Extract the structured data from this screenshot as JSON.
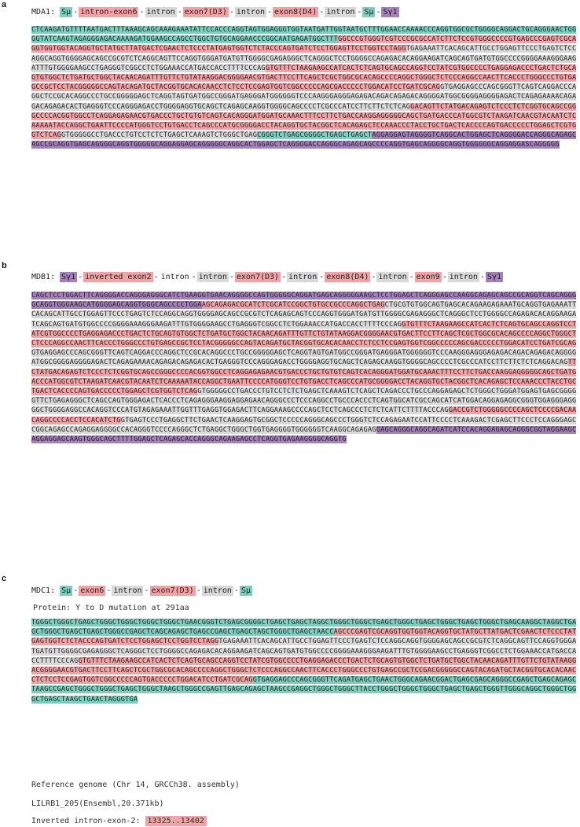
{
  "colors": {
    "teal": "#7ecfbf",
    "pink": "#f2a3a6",
    "grey": "#d9d9d9",
    "purple": "#a680bb"
  },
  "panels": [
    {
      "letter": "a",
      "name": "MDA1:",
      "construct": [
        {
          "text": "Sμ",
          "color": "teal"
        },
        {
          "text": "intron-exon6",
          "color": "pink"
        },
        {
          "text": "intron",
          "color": "grey"
        },
        {
          "text": "exon7(D3)",
          "color": "pink"
        },
        {
          "text": "intron",
          "color": "grey"
        },
        {
          "text": "exon8(D4)",
          "color": "pink"
        },
        {
          "text": "intron",
          "color": "grey"
        },
        {
          "text": "Sμ",
          "color": "teal"
        },
        {
          "text": "Sγ1",
          "color": "purple"
        }
      ],
      "sequence": [
        {
          "text": "CTCAAGATGTTTTAATGACTTTAAAGCAGCAAAGAAATATTCCACCCAGGTAGTGGAGGGTGGTAATGATTGGTAATGCTTTGGAACCAAAACCCAGGTGGCGCTGGGGCAGGACTGCAGGGAACTGGGGTATCAAGTAGAGGGAGACAAAAGATGGAAGCCAGCCTGGCTGTGCAGGAACCCGGCAATGAGATGGCTTT",
          "color": "teal"
        },
        {
          "text": "GGCCCGTGGGTCGTCCCGCGCCATCTTCTCCGTGGGCCCCGTGAGCCCGAGTCGCAGGTGGTGGTACAGGTGCTATGCTTATGACTCGAACTCTCCCTATGAGTGGTCTCTACCCAGTGATCTCCTGGAGTTCCTGGTCCTAGG",
          "color": "pink"
        },
        {
          "text": "TGAGAAATTCACAGCATTGCCTGGAGTTCCCTGAGTCTCCAGGCAGGTGGGGAGCAGCCGCGTCTCAGGCAGTTCCAGGTGGGATGATGTTGGGGCGAGAGGGCTCAGGGCTCCTGGGGCCAGAGACACAGGAAGATCAGCAGTGATGTGGCCCCGGGGAAAGGGAAGATTTGTGGGGAAGCCTGAGGGTCGGCCTCTGGAAACCATGACCACCTTTTCCCAG",
          "color": "grey"
        },
        {
          "text": "GTGTTTCTAAGAAGCCATCACTCTCAGTGCAGCCAGGTCCTATCGTGGCCCCTGAGGAGACCCTGACTCTGCAGTGTGGCTCTGATGCTGGCTACAACAGATTTGTTCTGTATAAGGACGGGGAACGTGACTTCCTTCAGCTCGCTGGCGCACAGCCCCAGGCTGGGCTCTCCCAGGCCAACTTCACCCTGGGCCCTGTGAGCCGCTCCTACGGGGGCCAGTACAGATGCTACGGTGCACACAACCTCTCCTCCGAGTGGTCGGCCCCCAGCGACCCCCTGGACATCCTGATCGCAG",
          "color": "pink"
        },
        {
          "text": "GTGAGGAGCCCAGCGGGTTCAGTCAGGACCCAGGCTCCGCACAGGCCCTGCCGGGGGAGCTCAGGTAGTGATGGCCGGGATGAGGGATGGGGGGTCCCAAGGGAGGGAGAGACAGACAGAGACAGGGGATGGCGGGGAGGGGAGACTCAGAGAAAACAGAGACAGAGACACTGAGGGTCCCAGGGAGACCTGGGGAGGTGCAGCTCAGAGCAAGGTGGGGCAGCCCCTCGCCCATCCTTCTTCTCTCAG",
          "color": "grey"
        },
        {
          "text": "GACAGTTCTATGACAGAGTCTCCCTCTCGGTGCAGCCGGGCCCCACGGTGGCCTCAGGAGAGAACGTGACCCTGCTGTGTCAGTCACAGGGATGGATGCAAACTTTCCTTCTGACCAAGGAGGGGGCAGCTGATGACCCATGGCGTCTAAGATCAACGTACAATCTCAAAAATACCAGGCTGAATTCCCCATGGGTCCTGTGACCTCAGCCCATGCGGGGACCTACAGGTGCTACGGCTCACAGAGCTCCAAACCCTACCTGCTGACTCACCCCAGTGACCCCCTGGAGCTCGTGGTCTCAG",
          "color": "pink"
        },
        {
          "text": "GTGGGGGCCTGACCCTGTCCTCTCTGAGCTCAAAGTCTGGGCTGAG",
          "color": "grey"
        },
        {
          "text": "CGGGTCTGAGCGGGGCTGAGCTGAGCT",
          "color": "teal"
        },
        {
          "text": "AGGAGGAGTAGGGGTCAGGCACTGGAGCTCAGGGGACCAGGGCAGAGCAGCCGCAGGTGAGCAGGGGCAGGTGGGGGCAGGAGGAGCAGGGGGCAGGCACTGGAGCTCAGGGGACCAGGGCAGAGCAGCCCCAGGTGAGCAGGGGCAGGTGGGGGGCAGGAGGASCAGGGGG",
          "color": "purple"
        }
      ]
    },
    {
      "letter": "b",
      "name": "MDB1:",
      "construct": [
        {
          "text": "Sγ1",
          "color": "purple"
        },
        {
          "text": "inverted exon2",
          "color": "pink"
        },
        {
          "text": "intron",
          "color": "none"
        },
        {
          "text": "intron",
          "color": "grey"
        },
        {
          "text": "exon7(D3)",
          "color": "pink"
        },
        {
          "text": "intron",
          "color": "grey"
        },
        {
          "text": "exon8(D4)",
          "color": "pink"
        },
        {
          "text": "intron",
          "color": "grey"
        },
        {
          "text": "exon9",
          "color": "pink"
        },
        {
          "text": "intron",
          "color": "grey"
        },
        {
          "text": "Sγ1",
          "color": "purple"
        }
      ],
      "sequence": [
        {
          "text": "CAGCTCCTGGACTTCAGGGGACCAGGGAGGGCATCTGAAGGTGAACAGGGGCCAGTGGGGGCAGGATGAGCAGGGGGAAGCTCCTGGAGCTCAGGGAGCCAAGGCAGAGCAGCCGCAGGTCAGCAGGGGCAGGTGGGAAGCATGGGGAGCAGGTGGGCAGCCCCTGGA",
          "color": "purple"
        },
        {
          "text": "AGCAGAGACGCATCTCGCATCCGGCTGTGCCGCCCAGGCTGAG",
          "color": "pink"
        },
        {
          "text": "CTGCGTGTGGCAGTGAGCACAGAAGAGAAATGCAGGTGAGAAATTCACAGCATTGCCTGGAGTTCCCTGAGTCTCCAGGCAGGTGGGGAGCAGCCGCGTCTCAGAGCAGTCCCAGGTGGGATGATGTTGGGGCGAGAGGGCTCAGGGCTCCTGGGGCCAGAGACACAGGAAGATCAGCAGTGATGTGGCCCCGGGGAAAGGGAAGATTTGTGGGGAAGCCTGAGGGTCGGCCTCTGGAAACCATGACCACCTTTTCCCAG",
          "color": "grey"
        },
        {
          "text": "GTGTTTCTAAGAAGCCATCACTCTCAGTGCAGCCAGGTCCTATCGTGGCCCCTGAGGAGACCCTGACTCTGCAGTGTGGCTCTGATGCTGGCTACAACAGATTTGTTCTGTATAAGGACGGGGAACGTGACTTCCTTCAGCTCGCTGGCGCACAGCCCCAGGCTGGGCTCTCCCAGGCCAACTTCACCCTGGGCCCTGTGAGCCGCTCCTACGGGGGCCAGTACAGATGCTACGGTGCACACAACCTCTCCTCCGAGTGGTCGGCCCCCAGCGACCCCCTGGACATCCTGATCGCAG",
          "color": "pink"
        },
        {
          "text": "GTGAGGAGCCCAGCGGGTTCAGTCAGGACCCAGGCTCCGCACAGGCCCTGCCGGGGGAGCTCAGGTAGTGATGGCCGGGATGAGGGATGGGGGGTCCCAAGGGAGGGAGAGACAGACAGAGACAGGGGATGGCGGGGAGGGGAGACTCAGAGAAAACAGAGACAGAGACACTGAGGGTCCCAGGGAGACCTGGGGAGGTGCAGCTCAGAGCAAGGTGGGGCAGCCCCTCGCCCATCCTTCTTCTCTCAGGACAG",
          "color": "grey"
        },
        {
          "text": "TTCTATGACAGAGTCTCCCTCTCGGTGCAGCCGGGCCCCACGGTGGCCTCAGGAGAGAACGTGACCCTGCTGTGTCAGTCACAGGGATGGATGCAAACTTTCCTTCTGACCAAGGAGGGGGCAGCTGATGACCCATGGCGTCTAAGATCAACGTACAATCTCAAAAATACCAGGCTGAATTCCCCATGGGTCCTGTGACCTCAGCCCATGCGGGGACCTACAGGTGCTACGGCTCACAGAGCTCCAAACCCTACCTGCTGACTCACCCCAGTGACCCCCTGGAGCTCGTGGTCTCAG",
          "color": "pink"
        },
        {
          "text": "GTGGGGGCCTGACCCTGTCCTCTCTGAGCTCAAAGTCTCAGCTCAGACCCTGCCCAGGAGAGCTCTGGGCTGGGATGGAGTGAGCGGGGGTTCTGAGAGGGCTCAGCCAGTGGGAGACTCACCCTCAGAGGGAAGGAGGAGAACAGGGCCCTCCCAGGCCTGCCCACCCTCAGTGGCATCGCCAGCATCATGGACAGGAGAGGCGGGTGGAGGGAGGGGCTGGGGAGGCCACAGGTCCCATGTAGAGAAATTGGTTTGAGGTGGAGACTTCAGGAAAGCCCCAGCTCCTCAGCCCTCTCTCATTCTTTTACCCAG",
          "color": "grey"
        },
        {
          "text": "GACCGTCTGGGGGCCCCAGCTCCCCGACAACAGGCCCCACCTCCACATCTG",
          "color": "pink"
        },
        {
          "text": "GTGAGTCCCTGAGGCTTCTGAACTCAAGGAGTGCGGCTCCCCCAGGGCAGCCCTGGGTCTCCAGAGAATCCATTCCCCTCAAAGACTCGAGCTTCCCTCCAGGGAGCCGGCAGAGCCAGAGGAGGGGCCACAGGGTCCCCAGGGCTCTGAGGCTGGGCTGGTGAGGGGTGGGGGGTCAAGGCAGAGAG",
          "color": "grey"
        },
        {
          "text": "GAGCAGGGCAGGCAGATCATCCACAGGAGAGCAGGGCGGTAGGAAGCAGGAGGAGCAAGTGGGCAGCTTTTGGAGCTCAGAGCACCAGGGCAGAAGAGCCTCAGGTGAGAAGGGGCAGGTG",
          "color": "purple"
        }
      ]
    },
    {
      "letter": "c",
      "name": "MDC1:",
      "construct": [
        {
          "text": "Sμ",
          "color": "teal"
        },
        {
          "text": "exon6",
          "color": "pink"
        },
        {
          "text": "intron",
          "color": "grey"
        },
        {
          "text": "exon7(D3)",
          "color": "pink"
        },
        {
          "text": "intron",
          "color": "grey"
        },
        {
          "text": "Sμ",
          "color": "teal"
        }
      ],
      "protein": "Protein: Y to D mutation at 291aa",
      "sequence": [
        {
          "text": "TGGGCTGGGCTGAGCTGGGCTGGGCTGGGCTGGGCTGAACGGGTCTGAGCGGGGCTGAGCTGAGCTAGGCTGGGCTGGGCTGAGCTGGGCTGAGCTGGGCTGAGCTGGGCTGAGCAAGGCTAGGCTGAGCTGGGCTGAGCTGAGCTGGGCCGAGCTCAGCAGAGCTGAGCCGAGCTGAGCTAGCTGGGCTGAGCTAACC",
          "color": "teal"
        },
        {
          "text": "AGCCCGAGTCGCAGGTGGTGGTACAGGTGCTATGCTTATGACTCGAACTCTCCCTATGAGTGGTCTCTACCCAGTGATCTCCTGGAGCTCCTGGTCCTAGG",
          "color": "pink"
        },
        {
          "text": "TGAGAAATTCACAGCATTGCCTGGAGTTCCCTGAGTCTCCAGGCAGGTGGGGAGCAGCCGCGTCTCAGGCAGTTCCAGGTGGGATGATGTTGGGGCGAGAGGGCTCAGGGCTCCTGGGGCCAGAGACACAGGAAGATCAGCAGTGATGTGGCCCCGGGGAAAGGGAAGATTTGTGGGGAAGCCTGAGGGTCGGCCTCTGGAAACCATGACCACCTTTTCCCAG",
          "color": "grey"
        },
        {
          "text": "GTGTTTCTAAGAAGCCATCACTCTCAGTGCAGCCAGGTCCTATCGTGGCCCCTGAGGAGACCCTGACTCTGCAGTGTGGCTCTGATGCTGGCTACAACAGATTTGTTCTGTATAAGGACGGGGAACGTGACTTCCTTCAGCTCGCTGGCGCACAGCCCCAGGCTGGGCTCTCCCAGGCCAACTTCACCCTGGGCCCTGTGAGCCGCTCCGACGGGGGCCAGTACAGATGCTACGGTGCACACAACCTCTCCTCCGAGTGGTCGGCCCCCAGTGACCCCCTGGACATCCTGATCGCAG",
          "color": "pink"
        },
        {
          "text": "GTGAGGAGCCCAGCGGGTTCAGATGAGCTGAACTGGGCAGAACGGACTGAGCGAGCAGGGCCGAGCTGAGCAGAGCTAAGCCGAGCTGGGCTGGGCTGAGCTGGGCTAAGCTGGGCCGAGTTGAGCAGAGCTAAGCCGAGGCTGGGCTGGGCTTACCTGGGCTGGGCTGGGCTGAGCTGAGCTGGGTTGGGCAGGCTGGGCTGGGCTGAGCTAAGCTGAACTAGGGTGA",
          "color": "teal"
        }
      ],
      "reference": {
        "line1": "Reference genome (Chr 14, GRCCh38. assembly)",
        "line2": "LILRB1_205(Ensembl,20.371kb)",
        "line3_label": "Inverted intron-exon-2:",
        "line3_value": "13325..13402"
      }
    }
  ]
}
